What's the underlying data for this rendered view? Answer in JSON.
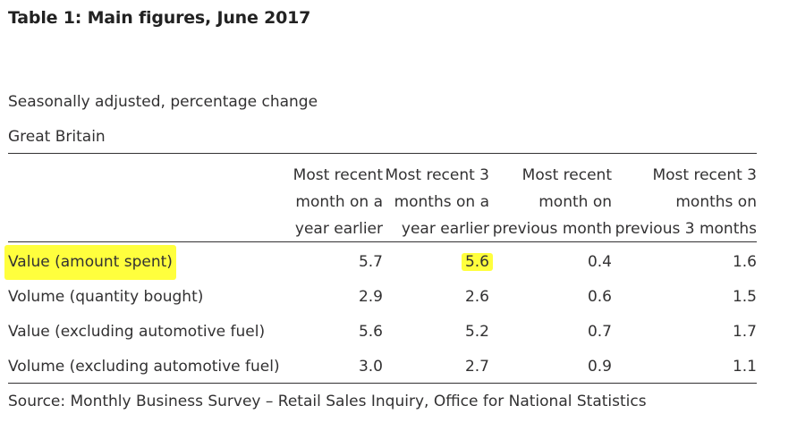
{
  "title": "Table 1: Main figures, June 2017",
  "subtitle": "Seasonally adjusted, percentage change",
  "region": "Great Britain",
  "columns": [
    [
      "Most recent",
      "month on a",
      "year earlier"
    ],
    [
      "Most recent 3",
      "months on a",
      "year earlier"
    ],
    [
      "Most recent",
      "month on",
      "previous month"
    ],
    [
      "Most recent 3",
      "months on",
      "previous 3 months"
    ]
  ],
  "rows": [
    {
      "label": "Value (amount spent)",
      "values": [
        "5.7",
        "5.6",
        "0.4",
        "1.6"
      ]
    },
    {
      "label": "Volume (quantity bought)",
      "values": [
        "2.9",
        "2.6",
        "0.6",
        "1.5"
      ]
    },
    {
      "label": "Value (excluding automotive fuel)",
      "values": [
        "5.6",
        "5.2",
        "0.7",
        "1.7"
      ]
    },
    {
      "label": "Volume (excluding automotive fuel)",
      "values": [
        "3.0",
        "2.7",
        "0.9",
        "1.1"
      ]
    }
  ],
  "source": "Source: Monthly Business Survey – Retail Sales Inquiry, Office for National Statistics",
  "highlight_color": "#ffff3d",
  "text_color": "#323132"
}
